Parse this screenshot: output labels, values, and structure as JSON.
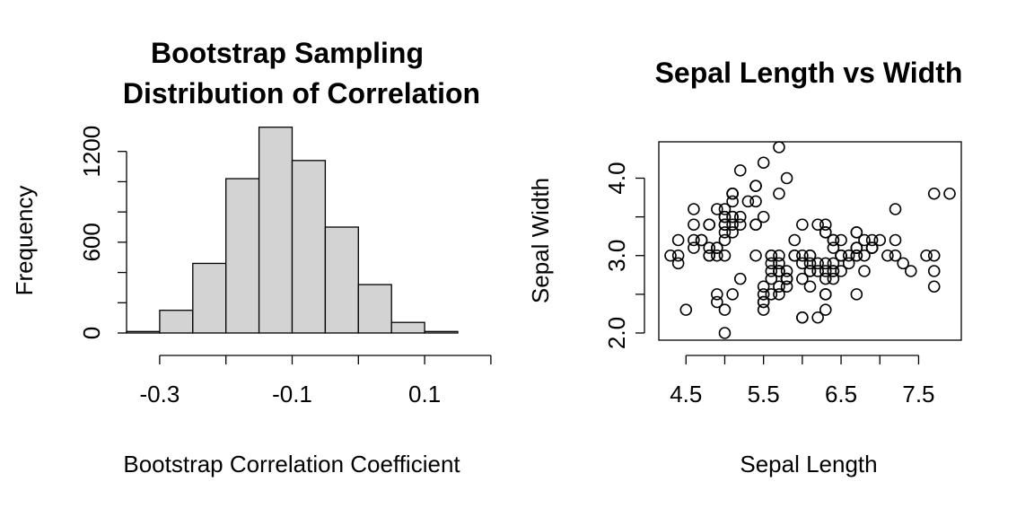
{
  "chart_data": [
    {
      "type": "bar",
      "title_lines": [
        "Bootstrap Sampling",
        "Distribution of Correlation"
      ],
      "xlabel": "Bootstrap Correlation Coefficient",
      "ylabel": "Frequency",
      "bin_edges": [
        -0.35,
        -0.3,
        -0.25,
        -0.2,
        -0.15,
        -0.1,
        -0.05,
        0.0,
        0.05,
        0.1,
        0.15
      ],
      "values": [
        10,
        150,
        460,
        1020,
        1360,
        1140,
        700,
        320,
        70,
        10
      ],
      "bar_fill": "#d3d3d3",
      "xticks": [
        -0.3,
        -0.2,
        -0.1,
        0.0,
        0.1,
        0.2
      ],
      "xtick_labels": [
        "-0.3",
        "",
        "-0.1",
        "",
        "0.1",
        ""
      ],
      "yticks": [
        0,
        200,
        400,
        600,
        800,
        1000,
        1200
      ],
      "ytick_labels": [
        "0",
        "",
        "",
        "600",
        "",
        "",
        "1200"
      ],
      "ylim": [
        0,
        1400
      ],
      "grid": false
    },
    {
      "type": "scatter",
      "title": "Sepal Length vs Width",
      "xlabel": "Sepal Length",
      "ylabel": "Sepal Width",
      "xlim": [
        4.3,
        7.9
      ],
      "ylim": [
        2.0,
        4.4
      ],
      "xticks": [
        4.5,
        5.0,
        5.5,
        6.0,
        6.5,
        7.0,
        7.5
      ],
      "xtick_labels": [
        "4.5",
        "",
        "5.5",
        "",
        "6.5",
        "",
        "7.5"
      ],
      "yticks": [
        2.0,
        2.5,
        3.0,
        3.5,
        4.0
      ],
      "ytick_labels": [
        "2.0",
        "",
        "3.0",
        "",
        "4.0"
      ],
      "grid": false,
      "points": [
        [
          5.1,
          3.5
        ],
        [
          4.9,
          3.0
        ],
        [
          4.7,
          3.2
        ],
        [
          4.6,
          3.1
        ],
        [
          5.0,
          3.6
        ],
        [
          5.4,
          3.9
        ],
        [
          4.6,
          3.4
        ],
        [
          5.0,
          3.4
        ],
        [
          4.4,
          2.9
        ],
        [
          4.9,
          3.1
        ],
        [
          5.4,
          3.7
        ],
        [
          4.8,
          3.4
        ],
        [
          4.8,
          3.0
        ],
        [
          4.3,
          3.0
        ],
        [
          5.8,
          4.0
        ],
        [
          5.7,
          4.4
        ],
        [
          5.4,
          3.9
        ],
        [
          5.1,
          3.5
        ],
        [
          5.7,
          3.8
        ],
        [
          5.1,
          3.8
        ],
        [
          5.4,
          3.4
        ],
        [
          5.1,
          3.7
        ],
        [
          4.6,
          3.6
        ],
        [
          5.1,
          3.3
        ],
        [
          4.8,
          3.4
        ],
        [
          5.0,
          3.0
        ],
        [
          5.0,
          3.4
        ],
        [
          5.2,
          3.5
        ],
        [
          5.2,
          3.4
        ],
        [
          4.7,
          3.2
        ],
        [
          4.8,
          3.1
        ],
        [
          5.4,
          3.4
        ],
        [
          5.2,
          4.1
        ],
        [
          5.5,
          4.2
        ],
        [
          4.9,
          3.1
        ],
        [
          5.0,
          3.2
        ],
        [
          5.5,
          3.5
        ],
        [
          4.9,
          3.6
        ],
        [
          4.4,
          3.0
        ],
        [
          5.1,
          3.4
        ],
        [
          5.0,
          3.5
        ],
        [
          4.5,
          2.3
        ],
        [
          4.4,
          3.2
        ],
        [
          5.0,
          3.5
        ],
        [
          5.1,
          3.8
        ],
        [
          4.8,
          3.0
        ],
        [
          5.1,
          3.8
        ],
        [
          4.6,
          3.2
        ],
        [
          5.3,
          3.7
        ],
        [
          5.0,
          3.3
        ],
        [
          7.0,
          3.2
        ],
        [
          6.4,
          3.2
        ],
        [
          6.9,
          3.1
        ],
        [
          5.5,
          2.3
        ],
        [
          6.5,
          2.8
        ],
        [
          5.7,
          2.8
        ],
        [
          6.3,
          3.3
        ],
        [
          4.9,
          2.4
        ],
        [
          6.6,
          2.9
        ],
        [
          5.2,
          2.7
        ],
        [
          5.0,
          2.0
        ],
        [
          5.9,
          3.0
        ],
        [
          6.0,
          2.2
        ],
        [
          6.1,
          2.9
        ],
        [
          5.6,
          2.9
        ],
        [
          6.7,
          3.1
        ],
        [
          5.6,
          3.0
        ],
        [
          5.8,
          2.7
        ],
        [
          6.2,
          2.2
        ],
        [
          5.6,
          2.5
        ],
        [
          5.9,
          3.2
        ],
        [
          6.1,
          2.8
        ],
        [
          6.3,
          2.5
        ],
        [
          6.1,
          2.8
        ],
        [
          6.4,
          2.9
        ],
        [
          6.6,
          3.0
        ],
        [
          6.8,
          2.8
        ],
        [
          6.7,
          3.0
        ],
        [
          6.0,
          2.9
        ],
        [
          5.7,
          2.6
        ],
        [
          5.5,
          2.4
        ],
        [
          5.5,
          2.4
        ],
        [
          5.8,
          2.7
        ],
        [
          6.0,
          2.7
        ],
        [
          5.4,
          3.0
        ],
        [
          6.0,
          3.4
        ],
        [
          6.7,
          3.1
        ],
        [
          6.3,
          2.3
        ],
        [
          5.6,
          3.0
        ],
        [
          5.5,
          2.5
        ],
        [
          5.5,
          2.6
        ],
        [
          6.1,
          3.0
        ],
        [
          5.8,
          2.6
        ],
        [
          5.0,
          2.3
        ],
        [
          5.6,
          2.7
        ],
        [
          5.7,
          3.0
        ],
        [
          5.7,
          2.9
        ],
        [
          6.2,
          2.9
        ],
        [
          5.1,
          2.5
        ],
        [
          5.7,
          2.8
        ],
        [
          6.3,
          3.3
        ],
        [
          5.8,
          2.7
        ],
        [
          7.1,
          3.0
        ],
        [
          6.3,
          2.9
        ],
        [
          6.5,
          3.0
        ],
        [
          7.6,
          3.0
        ],
        [
          4.9,
          2.5
        ],
        [
          7.3,
          2.9
        ],
        [
          6.7,
          2.5
        ],
        [
          7.2,
          3.6
        ],
        [
          6.5,
          3.2
        ],
        [
          6.4,
          2.7
        ],
        [
          6.8,
          3.0
        ],
        [
          5.7,
          2.5
        ],
        [
          5.8,
          2.8
        ],
        [
          6.4,
          3.2
        ],
        [
          6.5,
          3.0
        ],
        [
          7.7,
          3.8
        ],
        [
          7.7,
          2.6
        ],
        [
          6.0,
          2.2
        ],
        [
          6.9,
          3.2
        ],
        [
          5.6,
          2.8
        ],
        [
          7.7,
          2.8
        ],
        [
          6.3,
          2.7
        ],
        [
          6.7,
          3.3
        ],
        [
          7.2,
          3.2
        ],
        [
          6.2,
          2.8
        ],
        [
          6.1,
          3.0
        ],
        [
          6.4,
          2.8
        ],
        [
          7.2,
          3.0
        ],
        [
          7.4,
          2.8
        ],
        [
          7.9,
          3.8
        ],
        [
          6.4,
          2.8
        ],
        [
          6.3,
          2.8
        ],
        [
          6.1,
          2.6
        ],
        [
          7.7,
          3.0
        ],
        [
          6.3,
          3.4
        ],
        [
          6.4,
          3.1
        ],
        [
          6.0,
          3.0
        ],
        [
          6.9,
          3.1
        ],
        [
          6.7,
          3.1
        ],
        [
          6.9,
          3.1
        ],
        [
          5.8,
          2.7
        ],
        [
          6.8,
          3.2
        ],
        [
          6.7,
          3.3
        ],
        [
          6.7,
          3.0
        ],
        [
          6.3,
          2.5
        ],
        [
          6.5,
          3.0
        ],
        [
          6.2,
          3.4
        ],
        [
          5.9,
          3.0
        ]
      ]
    }
  ]
}
